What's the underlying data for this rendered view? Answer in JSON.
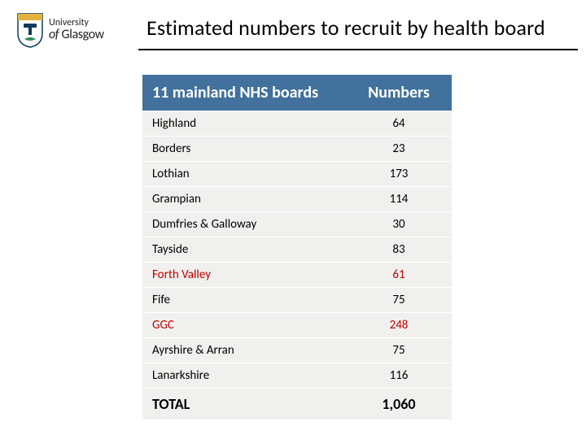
{
  "logo": {
    "line1": "University",
    "line2_prefix": "of",
    "line2": "Glasgow",
    "crest": {
      "shield_fill": "#ffffff",
      "shield_stroke": "#0a3a5a",
      "top_band": "#e3b23c",
      "emblem_color": "#0a3a5a",
      "bottom_bird": "#2e8b57"
    }
  },
  "title": "Estimated numbers to recruit by health board",
  "table": {
    "header_bg": "#41719c",
    "row_bg": "#f0f0ee",
    "highlight_color": "#c00000",
    "columns": [
      "11 mainland NHS boards",
      "Numbers"
    ],
    "rows": [
      {
        "board": "Highland",
        "value": "64",
        "highlight": false
      },
      {
        "board": "Borders",
        "value": "23",
        "highlight": false
      },
      {
        "board": "Lothian",
        "value": "173",
        "highlight": false
      },
      {
        "board": "Grampian",
        "value": "114",
        "highlight": false
      },
      {
        "board": "Dumfries & Galloway",
        "value": "30",
        "highlight": false
      },
      {
        "board": "Tayside",
        "value": "83",
        "highlight": false
      },
      {
        "board": "Forth Valley",
        "value": "61",
        "highlight": true
      },
      {
        "board": "Fife",
        "value": "75",
        "highlight": false
      },
      {
        "board": "GGC",
        "value": "248",
        "highlight": true
      },
      {
        "board": "Ayrshire & Arran",
        "value": "75",
        "highlight": false
      },
      {
        "board": "Lanarkshire",
        "value": "116",
        "highlight": false
      }
    ],
    "total_label": "TOTAL",
    "total_value": "1,060"
  }
}
